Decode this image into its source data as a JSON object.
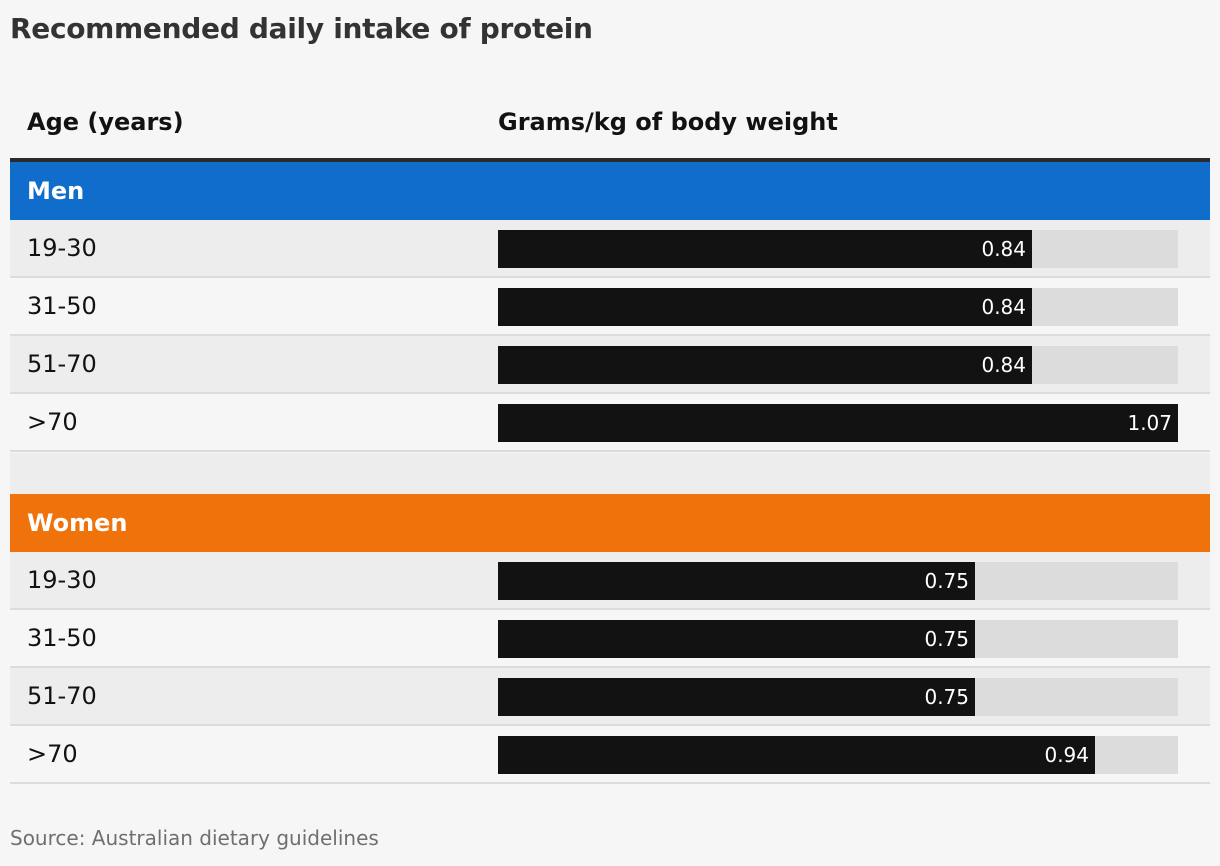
{
  "title": "Recommended daily intake of protein",
  "columns": {
    "age": "Age (years)",
    "value": "Grams/kg of body weight"
  },
  "source": "Source: Australian dietary guidelines",
  "chart_data": {
    "type": "bar",
    "title": "Recommended daily intake of protein",
    "xlabel": "Grams/kg of body weight",
    "ylabel": "Age (years)",
    "xlim": [
      0,
      1.07
    ],
    "groups": [
      {
        "name": "Men",
        "color": "#106dcc",
        "rows": [
          {
            "label": "19-30",
            "value": 0.84,
            "display": "0.84"
          },
          {
            "label": "31-50",
            "value": 0.84,
            "display": "0.84"
          },
          {
            "label": "51-70",
            "value": 0.84,
            "display": "0.84"
          },
          {
            "label": ">70",
            "value": 1.07,
            "display": "1.07"
          }
        ]
      },
      {
        "name": "Women",
        "color": "#f0720a",
        "rows": [
          {
            "label": "19-30",
            "value": 0.75,
            "display": "0.75"
          },
          {
            "label": "31-50",
            "value": 0.75,
            "display": "0.75"
          },
          {
            "label": "51-70",
            "value": 0.75,
            "display": "0.75"
          },
          {
            "label": ">70",
            "value": 0.94,
            "display": "0.94"
          }
        ]
      }
    ],
    "colors": {
      "bar": "#121212",
      "track": "#dcdcdc"
    }
  }
}
